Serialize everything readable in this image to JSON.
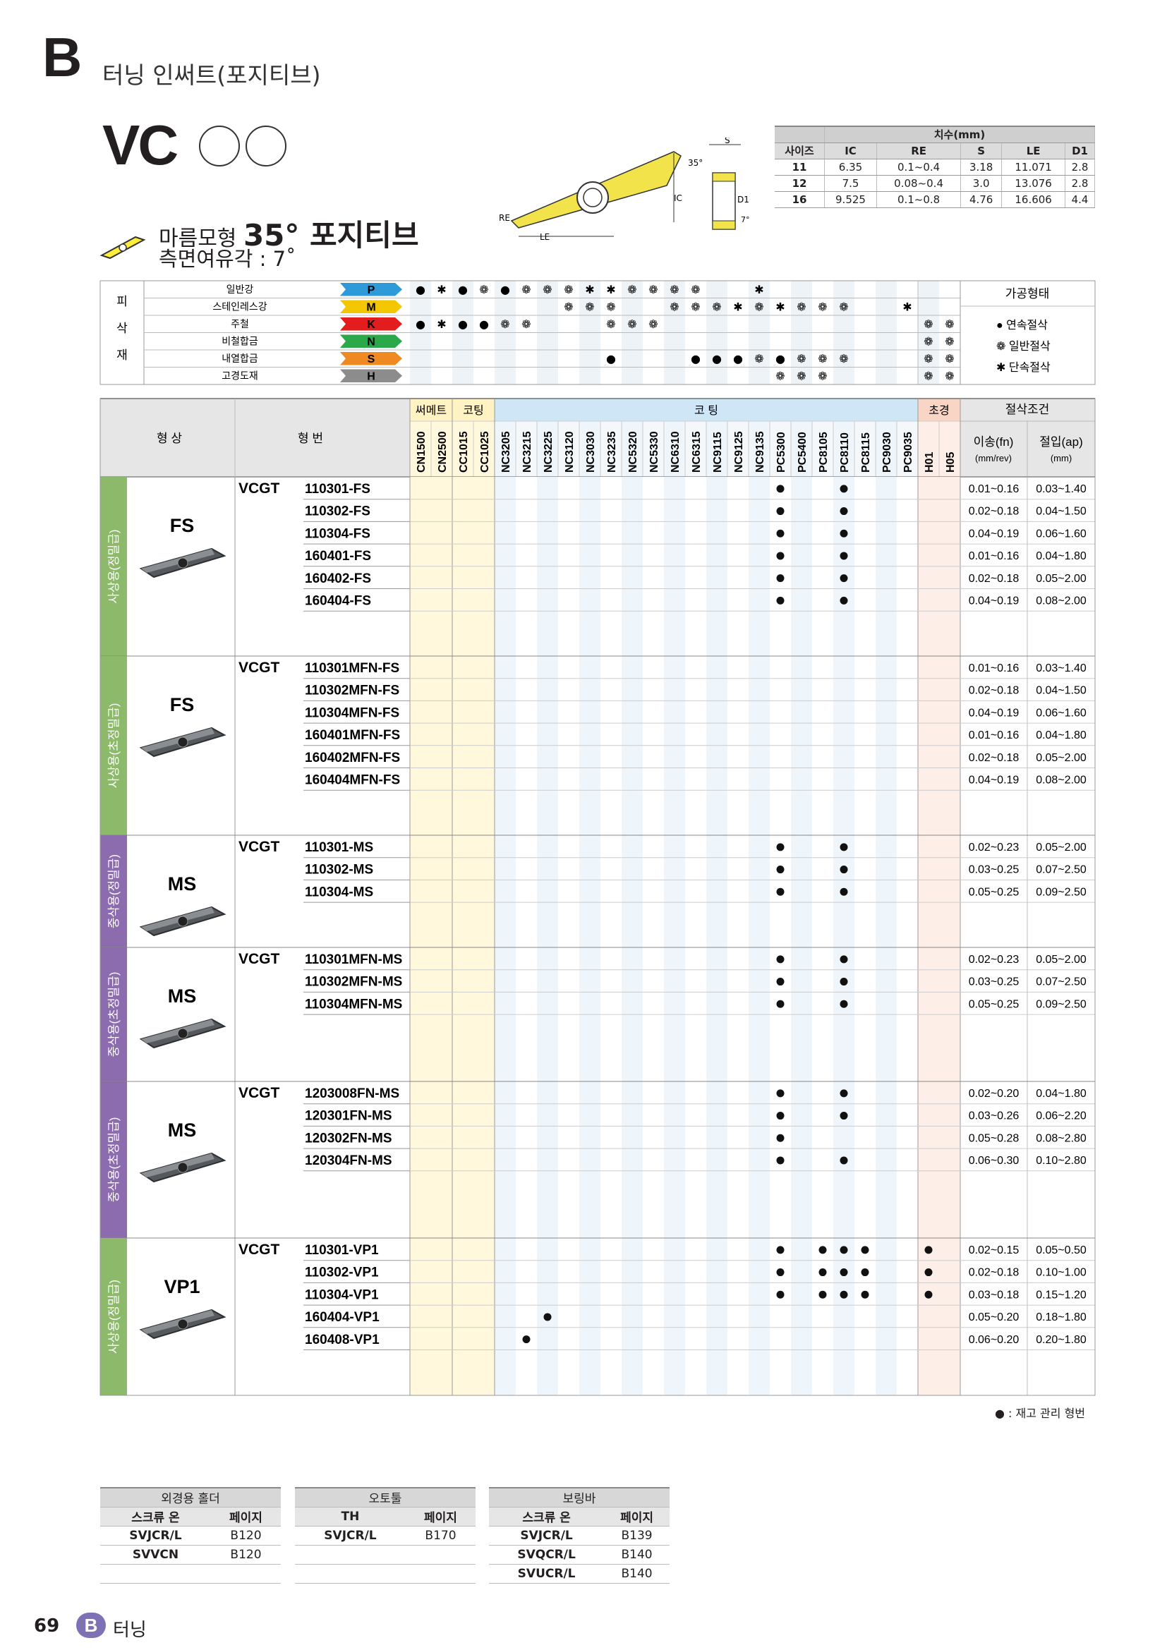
{
  "header": {
    "section_letter": "B",
    "section_title": "터닝 인써트(포지티브)",
    "model": "VC"
  },
  "shape": {
    "name_prefix": "마름모형",
    "name_bold": "35° 포지티브",
    "relief": "측면여유각 : 7˚"
  },
  "drawing": {
    "labels": {
      "s": "S",
      "angle": "35°",
      "ic": "IC",
      "d1": "D1",
      "re": "RE",
      "le": "LE",
      "relief": "7°"
    }
  },
  "dims": {
    "group_header": "치수(mm)",
    "headers": [
      "사이즈",
      "IC",
      "RE",
      "S",
      "LE",
      "D1"
    ],
    "rows": [
      [
        "11",
        "6.35",
        "0.1~0.4",
        "3.18",
        "11.071",
        "2.8"
      ],
      [
        "12",
        "7.5",
        "0.08~0.4",
        "3.0",
        "13.076",
        "2.8"
      ],
      [
        "16",
        "9.525",
        "0.1~0.8",
        "4.76",
        "16.606",
        "4.4"
      ]
    ]
  },
  "materials": {
    "side_label": [
      "피",
      "삭",
      "재"
    ],
    "rows": [
      {
        "name": "일반강",
        "code": "P",
        "color": "#2e9ad8"
      },
      {
        "name": "스테인레스강",
        "code": "M",
        "color": "#f3c700"
      },
      {
        "name": "주철",
        "code": "K",
        "color": "#e31d1d"
      },
      {
        "name": "비철합금",
        "code": "N",
        "color": "#2aa84a"
      },
      {
        "name": "내열합금",
        "code": "S",
        "color": "#ef8a23"
      },
      {
        "name": "고경도재",
        "code": "H",
        "color": "#8c8c8c"
      }
    ],
    "legend_title": "가공형태",
    "legend": [
      "연속절삭",
      "일반절삭",
      "단속절삭"
    ]
  },
  "main": {
    "col_shape": "형 상",
    "col_code": "형 번",
    "group_cermet": "써메트",
    "group_coating1": "코팅",
    "group_coating2": "코 팅",
    "group_super": "초경",
    "group_cond": "절삭조건",
    "grades": [
      "CN1500",
      "CN2500",
      "CC1015",
      "CC1025",
      "NC3205",
      "NC3215",
      "NC3225",
      "NC3120",
      "NC3030",
      "NC3235",
      "NC5320",
      "NC5330",
      "NC6310",
      "NC6315",
      "NC9115",
      "NC9125",
      "NC9135",
      "PC5300",
      "PC5400",
      "PC8105",
      "PC8110",
      "PC8115",
      "PC9030",
      "PC9035",
      "H01",
      "H05"
    ],
    "feed_label": "이송(fn)",
    "feed_unit": "(mm/rev)",
    "depth_label": "절입(ap)",
    "depth_unit": "(mm)",
    "groups": [
      {
        "side": "사상용(정밀급)",
        "chip": "FS",
        "prefix": "VCGT",
        "color": "#8db96a",
        "rows": [
          {
            "code": "110301-FS",
            "dots": [
              17,
              20
            ],
            "feed": "0.01~0.16",
            "depth": "0.03~1.40"
          },
          {
            "code": "110302-FS",
            "dots": [
              17,
              20
            ],
            "feed": "0.02~0.18",
            "depth": "0.04~1.50"
          },
          {
            "code": "110304-FS",
            "dots": [
              17,
              20
            ],
            "feed": "0.04~0.19",
            "depth": "0.06~1.60"
          },
          {
            "code": "160401-FS",
            "dots": [
              17,
              20
            ],
            "feed": "0.01~0.16",
            "depth": "0.04~1.80"
          },
          {
            "code": "160402-FS",
            "dots": [
              17,
              20
            ],
            "feed": "0.02~0.18",
            "depth": "0.05~2.00"
          },
          {
            "code": "160404-FS",
            "dots": [
              17,
              20
            ],
            "feed": "0.04~0.19",
            "depth": "0.08~2.00"
          }
        ]
      },
      {
        "side": "사상용(초정밀급)",
        "chip": "FS",
        "prefix": "VCGT",
        "color": "#8db96a",
        "rows": [
          {
            "code": "110301MFN-FS",
            "dots": [],
            "feed": "0.01~0.16",
            "depth": "0.03~1.40"
          },
          {
            "code": "110302MFN-FS",
            "dots": [],
            "feed": "0.02~0.18",
            "depth": "0.04~1.50"
          },
          {
            "code": "110304MFN-FS",
            "dots": [],
            "feed": "0.04~0.19",
            "depth": "0.06~1.60"
          },
          {
            "code": "160401MFN-FS",
            "dots": [],
            "feed": "0.01~0.16",
            "depth": "0.04~1.80"
          },
          {
            "code": "160402MFN-FS",
            "dots": [],
            "feed": "0.02~0.18",
            "depth": "0.05~2.00"
          },
          {
            "code": "160404MFN-FS",
            "dots": [],
            "feed": "0.04~0.19",
            "depth": "0.08~2.00"
          }
        ]
      },
      {
        "side": "중삭용(정밀급)",
        "chip": "MS",
        "prefix": "VCGT",
        "color": "#8c6cae",
        "rows": [
          {
            "code": "110301-MS",
            "dots": [
              17,
              20
            ],
            "feed": "0.02~0.23",
            "depth": "0.05~2.00"
          },
          {
            "code": "110302-MS",
            "dots": [
              17,
              20
            ],
            "feed": "0.03~0.25",
            "depth": "0.07~2.50"
          },
          {
            "code": "110304-MS",
            "dots": [
              17,
              20
            ],
            "feed": "0.05~0.25",
            "depth": "0.09~2.50"
          }
        ]
      },
      {
        "side": "중삭용(초정밀급)",
        "chip": "MS",
        "prefix": "VCGT",
        "color": "#8c6cae",
        "rows": [
          {
            "code": "110301MFN-MS",
            "dots": [
              17,
              20
            ],
            "feed": "0.02~0.23",
            "depth": "0.05~2.00"
          },
          {
            "code": "110302MFN-MS",
            "dots": [
              17,
              20
            ],
            "feed": "0.03~0.25",
            "depth": "0.07~2.50"
          },
          {
            "code": "110304MFN-MS",
            "dots": [
              17,
              20
            ],
            "feed": "0.05~0.25",
            "depth": "0.09~2.50"
          }
        ]
      },
      {
        "side": "중삭용(초정밀급)",
        "chip": "MS",
        "prefix": "VCGT",
        "color": "#8c6cae",
        "rows": [
          {
            "code": "1203008FN-MS",
            "dots": [
              17,
              20
            ],
            "feed": "0.02~0.20",
            "depth": "0.04~1.80"
          },
          {
            "code": "120301FN-MS",
            "dots": [
              17,
              20
            ],
            "feed": "0.03~0.26",
            "depth": "0.06~2.20"
          },
          {
            "code": "120302FN-MS",
            "dots": [
              17
            ],
            "feed": "0.05~0.28",
            "depth": "0.08~2.80"
          },
          {
            "code": "120304FN-MS",
            "dots": [
              17,
              20
            ],
            "feed": "0.06~0.30",
            "depth": "0.10~2.80"
          }
        ]
      },
      {
        "side": "사상용(정밀급)",
        "chip": "VP1",
        "prefix": "VCGT",
        "color": "#8db96a",
        "rows": [
          {
            "code": "110301-VP1",
            "dots": [
              17,
              19,
              20,
              21,
              24
            ],
            "feed": "0.02~0.15",
            "depth": "0.05~0.50"
          },
          {
            "code": "110302-VP1",
            "dots": [
              17,
              19,
              20,
              21,
              24
            ],
            "feed": "0.02~0.18",
            "depth": "0.10~1.00"
          },
          {
            "code": "110304-VP1",
            "dots": [
              17,
              19,
              20,
              21,
              24
            ],
            "feed": "0.03~0.18",
            "depth": "0.15~1.20"
          },
          {
            "code": "160404-VP1",
            "dots": [
              6
            ],
            "feed": "0.05~0.20",
            "depth": "0.18~1.80"
          },
          {
            "code": "160408-VP1",
            "dots": [
              5
            ],
            "feed": "0.06~0.20",
            "depth": "0.20~1.80"
          }
        ]
      }
    ]
  },
  "note": "● : 재고 관리 형번",
  "holders": [
    {
      "title": "외경용 홀더",
      "h1": "스크류 온",
      "h2": "페이지",
      "rows": [
        [
          "SVJCR/L",
          "B120"
        ],
        [
          "SVVCN",
          "B120"
        ],
        [
          "",
          ""
        ]
      ]
    },
    {
      "title": "오토툴",
      "h1": "TH",
      "h2": "페이지",
      "rows": [
        [
          "SVJCR/L",
          "B170"
        ],
        [
          "",
          ""
        ],
        [
          "",
          ""
        ]
      ]
    },
    {
      "title": "보링바",
      "h1": "스크류 온",
      "h2": "페이지",
      "rows": [
        [
          "SVJCR/L",
          "B139"
        ],
        [
          "SVQCR/L",
          "B140"
        ],
        [
          "SVUCR/L",
          "B140"
        ]
      ]
    }
  ],
  "footer": {
    "page": "69",
    "badge": "B",
    "label": "터닝"
  }
}
